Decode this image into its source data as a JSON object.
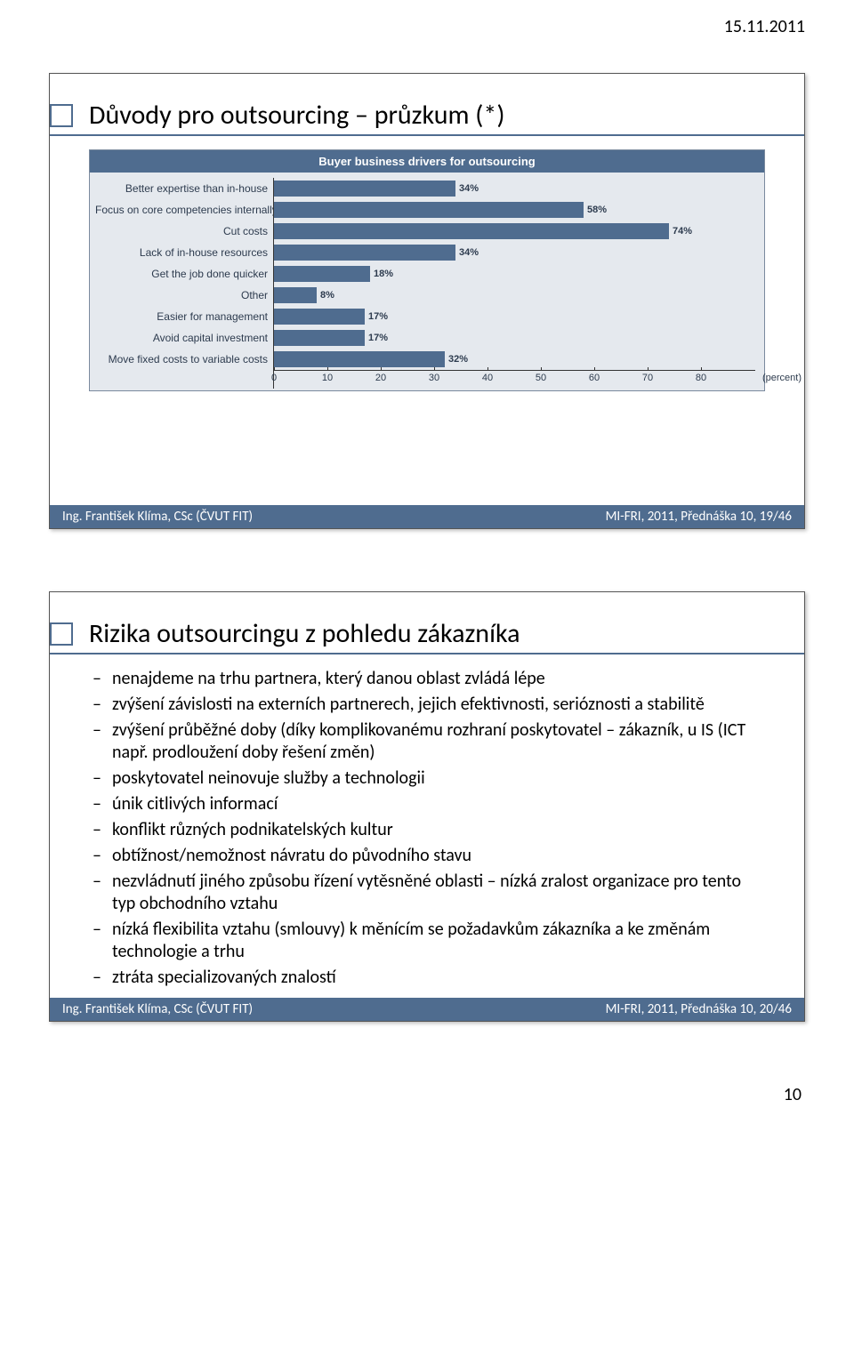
{
  "header_date": "15.11.2011",
  "page_number": "10",
  "slide1": {
    "title": "Důvody pro outsourcing – průzkum (*)",
    "footer_left": "Ing. František Klíma, CSc (ČVUT FIT)",
    "footer_right": "MI-FRI, 2011, Přednáška 10, 19/46"
  },
  "slide2": {
    "title": "Rizika outsourcingu z pohledu zákazníka",
    "footer_left": "Ing. František Klíma, CSc (ČVUT FIT)",
    "footer_right": "MI-FRI, 2011, Přednáška 10, 20/46",
    "bullets": [
      "nenajdeme na trhu partnera, který danou oblast zvládá lépe",
      "zvýšení závislosti na externích partnerech, jejich efektivnosti, serióznosti a stabilitě",
      "zvýšení průběžné doby (díky komplikovanému rozhraní poskytovatel – zákazník, u IS (ICT např. prodloužení doby řešení změn)",
      "poskytovatel neinovuje služby a technologii",
      "únik citlivých informací",
      "konflikt různých podnikatelských kultur",
      "obtížnost/nemožnost návratu do původního stavu",
      "nezvládnutí jiného způsobu řízení vytěsněné oblasti – nízká zralost organizace pro tento typ obchodního vztahu",
      "nízká flexibilita vztahu (smlouvy) k měnícím se požadavkům zákazníka a ke změnám technologie a trhu",
      "ztráta specializovaných znalostí"
    ]
  },
  "chart": {
    "type": "bar",
    "title": "Buyer business drivers for outsourcing",
    "xmax": 80,
    "xtick_step": 10,
    "x_unit_label": "(percent)",
    "bar_color": "#4f6c8f",
    "background_color": "#e5e9ee",
    "label_color": "#2d3b4e",
    "font_size": 12,
    "rows": [
      {
        "label": "Better expertise than in-house",
        "value": 34,
        "text": "34%"
      },
      {
        "label": "Focus on core competencies internally",
        "value": 58,
        "text": "58%"
      },
      {
        "label": "Cut costs",
        "value": 74,
        "text": "74%"
      },
      {
        "label": "Lack of in-house resources",
        "value": 34,
        "text": "34%"
      },
      {
        "label": "Get the job done quicker",
        "value": 18,
        "text": "18%"
      },
      {
        "label": "Other",
        "value": 8,
        "text": "8%"
      },
      {
        "label": "Easier for management",
        "value": 17,
        "text": "17%"
      },
      {
        "label": "Avoid capital investment",
        "value": 17,
        "text": "17%"
      },
      {
        "label": "Move fixed costs to variable costs",
        "value": 32,
        "text": "32%"
      }
    ],
    "xticks": [
      "0",
      "10",
      "20",
      "30",
      "40",
      "50",
      "60",
      "70",
      "80"
    ]
  }
}
